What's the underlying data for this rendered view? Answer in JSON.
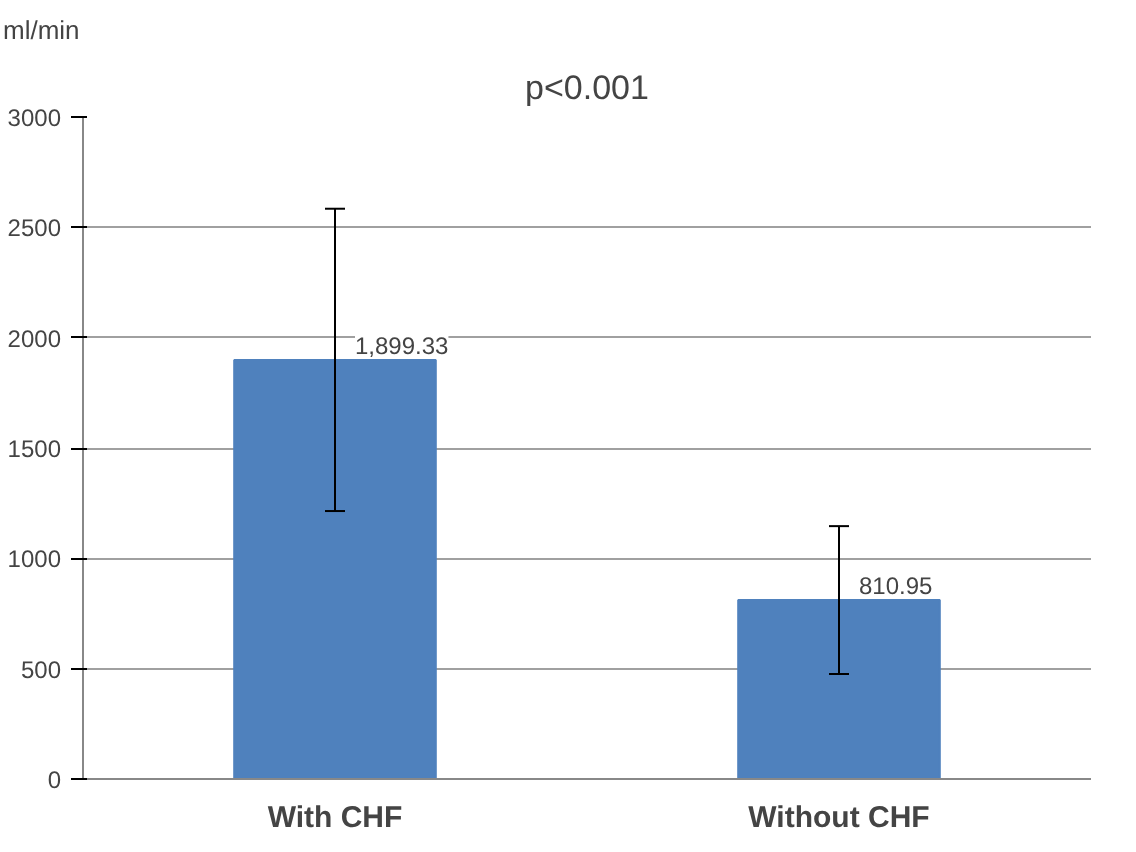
{
  "chart_data": {
    "type": "bar",
    "title": "p<0.001",
    "ylabel": "ml/min",
    "categories": [
      "With CHF",
      "Without CHF"
    ],
    "values": [
      1899.33,
      810.95
    ],
    "errors": [
      685,
      335
    ],
    "value_labels": [
      "1,899.33",
      "810.95"
    ],
    "color": "#4f81bd",
    "ylim": [
      0,
      3000
    ],
    "yticks": [
      0,
      500,
      1000,
      1500,
      2000,
      2500,
      3000
    ],
    "grid": "y"
  }
}
